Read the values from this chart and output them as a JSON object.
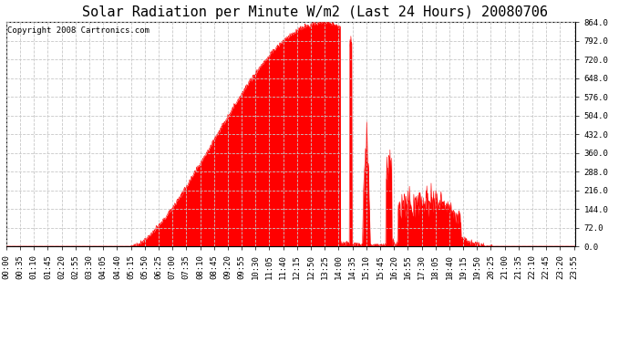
{
  "title": "Solar Radiation per Minute W/m2 (Last 24 Hours) 20080706",
  "copyright": "Copyright 2008 Cartronics.com",
  "fill_color": "#FF0000",
  "line_color": "#FF0000",
  "background_color": "#FFFFFF",
  "grid_color": "#C8C8C8",
  "dashed_line_color": "#FF0000",
  "yticks": [
    0.0,
    72.0,
    144.0,
    216.0,
    288.0,
    360.0,
    432.0,
    504.0,
    576.0,
    648.0,
    720.0,
    792.0,
    864.0
  ],
  "ymin": 0.0,
  "ymax": 864.0,
  "title_fontsize": 11,
  "copyright_fontsize": 6.5,
  "tick_fontsize": 6.5,
  "num_minutes": 1440,
  "tick_interval_minutes": 35,
  "sunrise_min": 315,
  "sunset_min": 1230,
  "peak_min": 800,
  "peak_val": 862
}
